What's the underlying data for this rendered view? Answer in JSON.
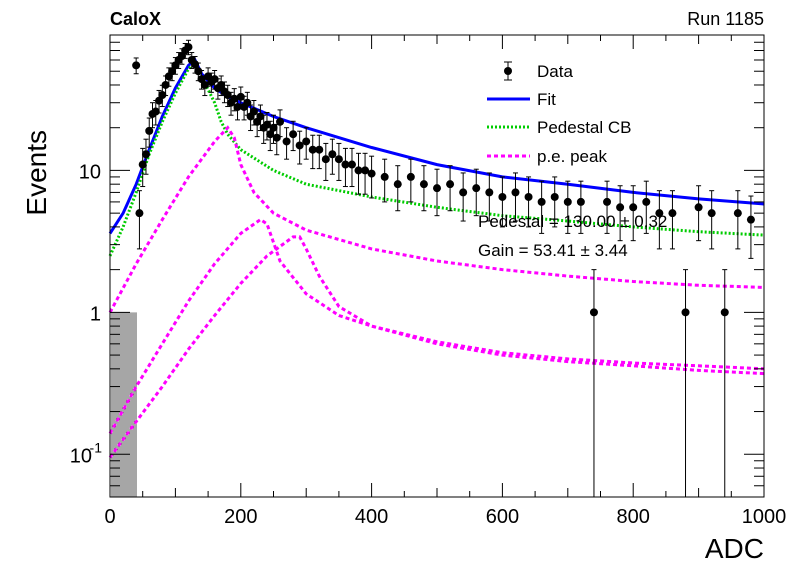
{
  "header": {
    "left_label": "CaloX",
    "right_label": "Run 1185"
  },
  "chart_data": {
    "type": "scatter",
    "title": "",
    "xlabel": "ADC",
    "ylabel": "Events",
    "xlim": [
      0,
      1000
    ],
    "ylim": [
      0.05,
      90
    ],
    "y_scale": "log",
    "x_ticks": [
      "0",
      "200",
      "400",
      "600",
      "800",
      "1000"
    ],
    "y_ticks": [
      {
        "label": "10",
        "sup": "-1",
        "value": 0.1
      },
      {
        "label": "1",
        "sup": "",
        "value": 1
      },
      {
        "label": "10",
        "sup": "",
        "value": 10
      }
    ],
    "grid": false,
    "legend": {
      "position": "top-right",
      "entries": [
        {
          "label": "Data",
          "style": "marker",
          "color": "#000000"
        },
        {
          "label": "Fit",
          "style": "line",
          "color": "#0000ff"
        },
        {
          "label": "Pedestal CB",
          "style": "dotted",
          "color": "#00cc00"
        },
        {
          "label": "p.e. peak",
          "style": "dashed",
          "color": "#ff00ff"
        }
      ]
    },
    "annotations": [
      "Pedestal = 130.00 ± 0.32",
      "Gain = 53.41 ± 3.44"
    ],
    "data_series": {
      "name": "Data",
      "x": [
        40,
        45,
        50,
        55,
        60,
        65,
        70,
        75,
        80,
        85,
        90,
        95,
        100,
        105,
        110,
        115,
        120,
        125,
        130,
        135,
        140,
        145,
        150,
        155,
        160,
        165,
        170,
        175,
        180,
        185,
        190,
        195,
        200,
        205,
        210,
        215,
        220,
        225,
        230,
        235,
        240,
        245,
        250,
        255,
        260,
        270,
        280,
        290,
        300,
        310,
        320,
        330,
        340,
        350,
        360,
        370,
        380,
        390,
        400,
        420,
        440,
        460,
        480,
        500,
        520,
        540,
        560,
        580,
        600,
        620,
        640,
        660,
        680,
        700,
        720,
        740,
        760,
        780,
        800,
        820,
        840,
        860,
        880,
        900,
        920,
        940,
        960,
        980
      ],
      "y": [
        55,
        5,
        11,
        13,
        19,
        25,
        26,
        31,
        34,
        40,
        46,
        50,
        55,
        60,
        64,
        70,
        74,
        60,
        56,
        50,
        44,
        40,
        46,
        42,
        44,
        38,
        40,
        36,
        34,
        30,
        32,
        28,
        33,
        28,
        30,
        24,
        26,
        22,
        24,
        20,
        21,
        18,
        20,
        17,
        22,
        16,
        18,
        15,
        16,
        14,
        14,
        12,
        13,
        12,
        11,
        11,
        10,
        10,
        9.5,
        9,
        8,
        9,
        8,
        7.5,
        8,
        7,
        7.5,
        7,
        6.5,
        7,
        6.5,
        6,
        6.5,
        6,
        6,
        1,
        6,
        5.5,
        5.5,
        6,
        5,
        5,
        1,
        5.5,
        5,
        1,
        5,
        4.5
      ],
      "err": [
        7,
        2.2,
        3.3,
        3.6,
        4.4,
        5,
        5.1,
        5.6,
        5.8,
        6.3,
        6.8,
        7.1,
        7.4,
        7.7,
        8,
        8.4,
        8.6,
        7.7,
        7.5,
        7.1,
        6.6,
        6.3,
        6.8,
        6.5,
        6.6,
        6.2,
        6.3,
        6,
        5.8,
        5.5,
        5.7,
        5.3,
        5.7,
        5.3,
        5.5,
        4.9,
        5.1,
        4.7,
        4.9,
        4.5,
        4.6,
        4.2,
        4.5,
        4.1,
        4.7,
        4,
        4.2,
        3.9,
        4,
        3.7,
        3.7,
        3.5,
        3.6,
        3.5,
        3.3,
        3.3,
        3.2,
        3.2,
        3.1,
        3,
        2.8,
        3,
        2.8,
        2.7,
        2.8,
        2.6,
        2.7,
        2.6,
        2.5,
        2.6,
        2.5,
        2.4,
        2.5,
        2.4,
        2.4,
        1,
        2.4,
        2.3,
        2.3,
        2.4,
        2.2,
        2.2,
        1,
        2.3,
        2.2,
        1,
        2.2,
        2.1
      ]
    },
    "curves": [
      {
        "name": "Fit",
        "color": "#0000ff",
        "style": "solid",
        "x": [
          0,
          20,
          40,
          60,
          80,
          100,
          120,
          130,
          140,
          160,
          180,
          200,
          250,
          300,
          400,
          500,
          600,
          700,
          800,
          900,
          1000
        ],
        "y": [
          3.6,
          5,
          8,
          14,
          24,
          38,
          55,
          60,
          48,
          38,
          33,
          30,
          24,
          20,
          14.5,
          11,
          9,
          8,
          7,
          6.3,
          5.8
        ]
      },
      {
        "name": "Pedestal CB",
        "color": "#00cc00",
        "style": "dotted",
        "x": [
          0,
          20,
          40,
          60,
          80,
          100,
          120,
          130,
          140,
          160,
          170,
          180,
          200,
          250,
          300,
          400,
          500,
          600,
          700,
          800,
          900,
          1000
        ],
        "y": [
          2.5,
          4,
          7,
          13,
          22,
          35,
          52,
          58,
          46,
          30,
          22,
          18,
          14,
          10,
          8,
          6.5,
          5.5,
          4.8,
          4.4,
          4,
          3.7,
          3.5
        ]
      },
      {
        "name": "p.e. peak",
        "color": "#ff00ff",
        "style": "dashed",
        "x": [
          0,
          40,
          80,
          120,
          160,
          180,
          190,
          200,
          220,
          250,
          300,
          400,
          500,
          600,
          700,
          800,
          900,
          1000
        ],
        "y": [
          1,
          2.2,
          4.5,
          9,
          16,
          20,
          17,
          11,
          7,
          5,
          3.8,
          2.8,
          2.3,
          2,
          1.8,
          1.65,
          1.55,
          1.5
        ]
      },
      {
        "name": "p.e. peak 2",
        "color": "#ff00ff",
        "style": "dashed",
        "x": [
          0,
          40,
          80,
          120,
          160,
          200,
          230,
          240,
          260,
          300,
          350,
          400,
          500,
          600,
          700,
          800,
          900,
          1000
        ],
        "y": [
          0.14,
          0.3,
          0.6,
          1.2,
          2.2,
          3.6,
          4.5,
          4.2,
          2.3,
          1.35,
          0.95,
          0.8,
          0.62,
          0.52,
          0.47,
          0.44,
          0.42,
          0.4
        ]
      },
      {
        "name": "p.e. peak 3",
        "color": "#ff00ff",
        "style": "dashed",
        "x": [
          0,
          40,
          80,
          120,
          160,
          200,
          240,
          280,
          290,
          300,
          320,
          350,
          400,
          500,
          600,
          700,
          800,
          900,
          1000
        ],
        "y": [
          0.095,
          0.17,
          0.3,
          0.55,
          0.95,
          1.6,
          2.5,
          3.4,
          3.4,
          2.8,
          1.8,
          1.1,
          0.8,
          0.6,
          0.5,
          0.45,
          0.42,
          0.39,
          0.37
        ]
      }
    ]
  }
}
